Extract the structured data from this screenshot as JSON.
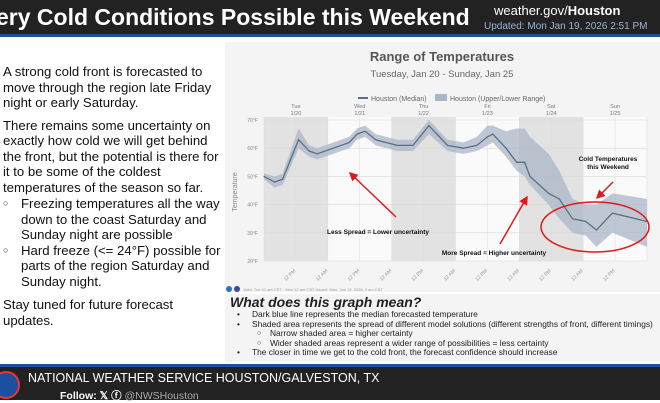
{
  "header": {
    "title": "ery Cold Conditions Possible this Weekend",
    "site_prefix": "weather.gov/",
    "site_bold": "Houston",
    "updated": "Updated: Mon Jan 19, 2026 2:51 PM"
  },
  "left": {
    "p1": "A strong cold front is forecasted to move through the region late Friday night or early Saturday.",
    "p2": "There remains some uncertainty on exactly how cold we will get behind the front, but the potential is there for it to be some of the coldest temperatures of the season so far.",
    "bullets": [
      "Freezing temperatures all the way down to the coast Saturday and Sunday night are possible",
      "Hard freeze (<= 24°F) possible for parts of the region Saturday and Sunday night."
    ],
    "p3": "Stay tuned for future forecast updates."
  },
  "chart_data": {
    "type": "area",
    "title": "Range of Temperatures",
    "subtitle": "Tuesday, Jan 20 - Sunday, Jan 25",
    "ylabel": "Temperature",
    "ylim": [
      20,
      70
    ],
    "yticks": [
      "20°F",
      "30°F",
      "40°F",
      "50°F",
      "60°F",
      "70°F"
    ],
    "xlim": [
      "2026-01-20T00:00",
      "2026-01-26T00:00"
    ],
    "day_labels": [
      [
        "Tue",
        "1/20"
      ],
      [
        "Wed",
        "1/21"
      ],
      [
        "Thu",
        "1/22"
      ],
      [
        "Fri",
        "1/23"
      ],
      [
        "Sat",
        "1/24"
      ],
      [
        "Sun",
        "1/25"
      ]
    ],
    "xticks": [
      "12 PM",
      "12 AM",
      "12 PM",
      "12 AM",
      "12 PM",
      "12 AM",
      "12 PM",
      "12 AM",
      "12 PM",
      "12 AM",
      "12 PM"
    ],
    "grid": true,
    "legend_position": "top",
    "colors": {
      "median": "#5a6f86",
      "range": "#a9b6c6",
      "annotation": "#e0191b"
    },
    "x": [
      "2026-01-20T00:00",
      "2026-01-20T04:00",
      "2026-01-20T07:00",
      "2026-01-20T13:00",
      "2026-01-20T17:00",
      "2026-01-20T20:00",
      "2026-01-21T08:00",
      "2026-01-21T11:00",
      "2026-01-21T14:00",
      "2026-01-21T18:00",
      "2026-01-22T02:00",
      "2026-01-22T08:00",
      "2026-01-22T14:00",
      "2026-01-22T21:00",
      "2026-01-23T03:00",
      "2026-01-23T08:00",
      "2026-01-23T12:00",
      "2026-01-23T14:00",
      "2026-01-23T19:00",
      "2026-01-23T23:00",
      "2026-01-24T02:00",
      "2026-01-24T04:00",
      "2026-01-24T11:00",
      "2026-01-24T15:00",
      "2026-01-24T20:00",
      "2026-01-25T01:00",
      "2026-01-25T05:00",
      "2026-01-25T11:00",
      "2026-01-26T00:00"
    ],
    "series": [
      {
        "name": "Houston (Median)",
        "values": [
          50,
          48,
          49,
          63,
          59,
          58,
          62,
          65,
          66,
          63,
          61,
          61,
          68,
          61,
          60,
          61,
          64,
          65,
          60,
          55,
          55,
          50,
          44,
          42,
          35,
          34,
          31,
          37,
          34
        ]
      },
      {
        "name": "Houston (Upper/Lower Range)",
        "upper": [
          51,
          50,
          51,
          67,
          61,
          60,
          64,
          67,
          68,
          65,
          63,
          63,
          70,
          63,
          62,
          64,
          68,
          68,
          66,
          67,
          67,
          64,
          58,
          52,
          42,
          40,
          40,
          44,
          42
        ],
        "lower": [
          49,
          46,
          47,
          60,
          57,
          56,
          60,
          63,
          64,
          61,
          59,
          59,
          65,
          59,
          58,
          59,
          61,
          62,
          57,
          52,
          50,
          47,
          40,
          35,
          30,
          29,
          25,
          30,
          25
        ]
      }
    ],
    "annotations": [
      "Cold Temperatures this Weekend",
      "Less Spread = Lower uncertainty",
      "More Spread = Higher uncertainty"
    ],
    "footnote": "Valid: Tue 01 am CST - Mon 12 am CST    Issued: Mon, Jan 19, 2026, 9 am CST"
  },
  "explain": {
    "heading": "What does this graph mean?",
    "items": [
      {
        "text": "Dark blue line represents the median forecasted temperature",
        "sub": false
      },
      {
        "text": "Shaded area represents the spread of different model solutions (different strengths of front, different timings)",
        "sub": false
      },
      {
        "text": "Narrow shaded area = higher certainty",
        "sub": true
      },
      {
        "text": "Wider shaded areas represent a wider range of possibilities = less certainty",
        "sub": true
      },
      {
        "text": "The closer in time we get to the cold front, the forecast confidence should increase",
        "sub": false
      }
    ]
  },
  "footer": {
    "org": "NATIONAL WEATHER SERVICE HOUSTON/GALVESTON, TX",
    "follow": "Follow:",
    "handle": "@NWSHouston"
  }
}
